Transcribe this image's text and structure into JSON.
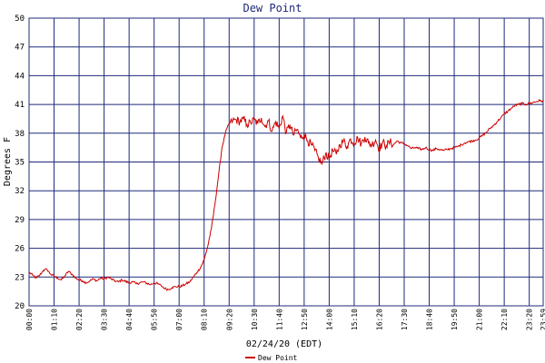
{
  "chart_data": {
    "type": "line",
    "title": "Dew Point",
    "xlabel": "02/24/20 (EDT)",
    "ylabel": "Degrees F",
    "x_ticks": [
      "00:00",
      "01:10",
      "02:20",
      "03:30",
      "04:40",
      "05:50",
      "07:00",
      "08:10",
      "09:20",
      "10:30",
      "11:40",
      "12:50",
      "14:00",
      "15:10",
      "16:20",
      "17:30",
      "18:40",
      "19:50",
      "21:00",
      "22:10",
      "23:20",
      "23:59"
    ],
    "y_ticks": [
      20,
      23,
      26,
      29,
      32,
      35,
      38,
      41,
      44,
      47,
      50
    ],
    "xlim": [
      "00:00",
      "23:59"
    ],
    "ylim": [
      20,
      50
    ],
    "grid": true,
    "legend_position": "bottom",
    "series": [
      {
        "name": "Dew Point",
        "color": "#cc0000",
        "points": [
          [
            "00:00",
            23.5
          ],
          [
            "00:10",
            23.2
          ],
          [
            "00:20",
            22.9
          ],
          [
            "00:30",
            23.2
          ],
          [
            "00:40",
            23.7
          ],
          [
            "00:50",
            23.8
          ],
          [
            "01:00",
            23.3
          ],
          [
            "01:10",
            23.1
          ],
          [
            "01:20",
            22.9
          ],
          [
            "01:30",
            22.7
          ],
          [
            "01:40",
            23.1
          ],
          [
            "01:50",
            23.6
          ],
          [
            "02:00",
            23.3
          ],
          [
            "02:10",
            22.9
          ],
          [
            "02:20",
            22.7
          ],
          [
            "02:30",
            22.6
          ],
          [
            "02:40",
            22.4
          ],
          [
            "02:50",
            22.6
          ],
          [
            "03:00",
            22.8
          ],
          [
            "03:10",
            22.6
          ],
          [
            "03:20",
            22.9
          ],
          [
            "03:30",
            22.8
          ],
          [
            "03:40",
            23.0
          ],
          [
            "03:50",
            22.8
          ],
          [
            "04:00",
            22.6
          ],
          [
            "04:10",
            22.5
          ],
          [
            "04:20",
            22.7
          ],
          [
            "04:40",
            22.4
          ],
          [
            "04:50",
            22.5
          ],
          [
            "05:00",
            22.3
          ],
          [
            "05:20",
            22.5
          ],
          [
            "05:40",
            22.2
          ],
          [
            "05:50",
            22.4
          ],
          [
            "06:00",
            22.3
          ],
          [
            "06:10",
            22.1
          ],
          [
            "06:20",
            21.8
          ],
          [
            "06:30",
            21.7
          ],
          [
            "06:40",
            21.9
          ],
          [
            "06:50",
            22.0
          ],
          [
            "07:00",
            22.0
          ],
          [
            "07:10",
            22.1
          ],
          [
            "07:20",
            22.3
          ],
          [
            "07:30",
            22.5
          ],
          [
            "07:40",
            23.0
          ],
          [
            "07:50",
            23.5
          ],
          [
            "08:00",
            24.0
          ],
          [
            "08:10",
            24.8
          ],
          [
            "08:20",
            26.2
          ],
          [
            "08:30",
            28.0
          ],
          [
            "08:40",
            30.5
          ],
          [
            "08:50",
            33.5
          ],
          [
            "09:00",
            36.5
          ],
          [
            "09:10",
            38.1
          ],
          [
            "09:20",
            39.0
          ],
          [
            "09:30",
            39.3
          ],
          [
            "09:40",
            39.4
          ],
          [
            "09:50",
            39.2
          ],
          [
            "10:00",
            39.5
          ],
          [
            "10:10",
            38.9
          ],
          [
            "10:20",
            39.1
          ],
          [
            "10:30",
            39.4
          ],
          [
            "10:40",
            39.0
          ],
          [
            "10:50",
            39.6
          ],
          [
            "11:00",
            38.7
          ],
          [
            "11:10",
            39.3
          ],
          [
            "11:20",
            38.2
          ],
          [
            "11:30",
            39.2
          ],
          [
            "11:40",
            38.5
          ],
          [
            "11:50",
            39.8
          ],
          [
            "12:00",
            38.0
          ],
          [
            "12:10",
            38.9
          ],
          [
            "12:20",
            37.8
          ],
          [
            "12:30",
            38.4
          ],
          [
            "12:40",
            37.5
          ],
          [
            "12:50",
            37.9
          ],
          [
            "13:00",
            37.2
          ],
          [
            "13:10",
            36.8
          ],
          [
            "13:20",
            36.2
          ],
          [
            "13:30",
            35.4
          ],
          [
            "13:40",
            34.8
          ],
          [
            "13:50",
            35.9
          ],
          [
            "14:00",
            35.4
          ],
          [
            "14:10",
            36.2
          ],
          [
            "14:20",
            35.8
          ],
          [
            "14:30",
            36.8
          ],
          [
            "14:40",
            37.2
          ],
          [
            "14:50",
            36.6
          ],
          [
            "15:00",
            37.4
          ],
          [
            "15:10",
            37.0
          ],
          [
            "15:20",
            37.5
          ],
          [
            "15:30",
            36.9
          ],
          [
            "15:40",
            37.6
          ],
          [
            "15:50",
            37.0
          ],
          [
            "16:00",
            36.8
          ],
          [
            "16:10",
            37.3
          ],
          [
            "16:20",
            36.4
          ],
          [
            "16:30",
            37.0
          ],
          [
            "16:40",
            36.7
          ],
          [
            "16:50",
            37.1
          ],
          [
            "17:00",
            36.8
          ],
          [
            "17:10",
            37.2
          ],
          [
            "17:20",
            37.0
          ],
          [
            "17:30",
            36.9
          ],
          [
            "17:40",
            36.7
          ],
          [
            "17:50",
            36.4
          ],
          [
            "18:00",
            36.5
          ],
          [
            "18:10",
            36.4
          ],
          [
            "18:20",
            36.3
          ],
          [
            "18:30",
            36.5
          ],
          [
            "18:40",
            36.3
          ],
          [
            "18:50",
            36.2
          ],
          [
            "19:00",
            36.4
          ],
          [
            "19:10",
            36.3
          ],
          [
            "19:20",
            36.2
          ],
          [
            "19:30",
            36.3
          ],
          [
            "19:40",
            36.4
          ],
          [
            "19:50",
            36.5
          ],
          [
            "20:00",
            36.6
          ],
          [
            "20:10",
            36.8
          ],
          [
            "20:20",
            37.0
          ],
          [
            "20:30",
            37.1
          ],
          [
            "20:40",
            37.2
          ],
          [
            "20:50",
            37.3
          ],
          [
            "21:00",
            37.5
          ],
          [
            "21:10",
            37.8
          ],
          [
            "21:20",
            38.1
          ],
          [
            "21:30",
            38.5
          ],
          [
            "21:40",
            38.8
          ],
          [
            "21:50",
            39.2
          ],
          [
            "22:00",
            39.6
          ],
          [
            "22:10",
            40.0
          ],
          [
            "22:20",
            40.3
          ],
          [
            "22:30",
            40.6
          ],
          [
            "22:40",
            40.9
          ],
          [
            "22:50",
            41.0
          ],
          [
            "23:00",
            41.1
          ],
          [
            "23:10",
            41.0
          ],
          [
            "23:20",
            41.1
          ],
          [
            "23:30",
            41.2
          ],
          [
            "23:40",
            41.3
          ],
          [
            "23:50",
            41.4
          ],
          [
            "23:59",
            41.3
          ]
        ]
      }
    ]
  },
  "colors": {
    "grid": "#1f2a7a",
    "title": "#1f2a7a",
    "line": "#cc0000",
    "axis_text": "#000000"
  }
}
